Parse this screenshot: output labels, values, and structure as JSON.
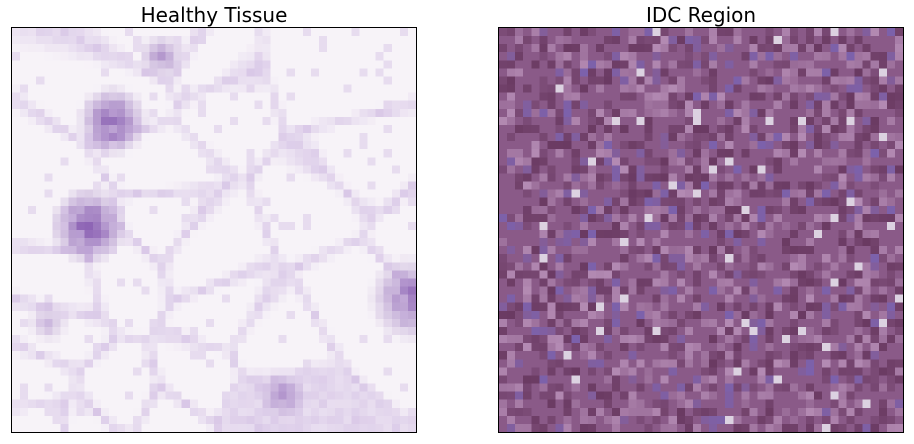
{
  "figure": {
    "panels": [
      {
        "title": "Healthy Tissue",
        "image": "histology-healthy-tissue",
        "palette": {
          "background": "#f7f3f8",
          "stain_light": "#d7c5e6",
          "stain_dark": "#7a4aa8"
        }
      },
      {
        "title": "IDC Region",
        "image": "histology-idc-region",
        "palette": {
          "base": "#8a5a88",
          "dark": "#6a3a62",
          "light": "#b890b8",
          "blue": "#7a62b0"
        }
      }
    ]
  }
}
